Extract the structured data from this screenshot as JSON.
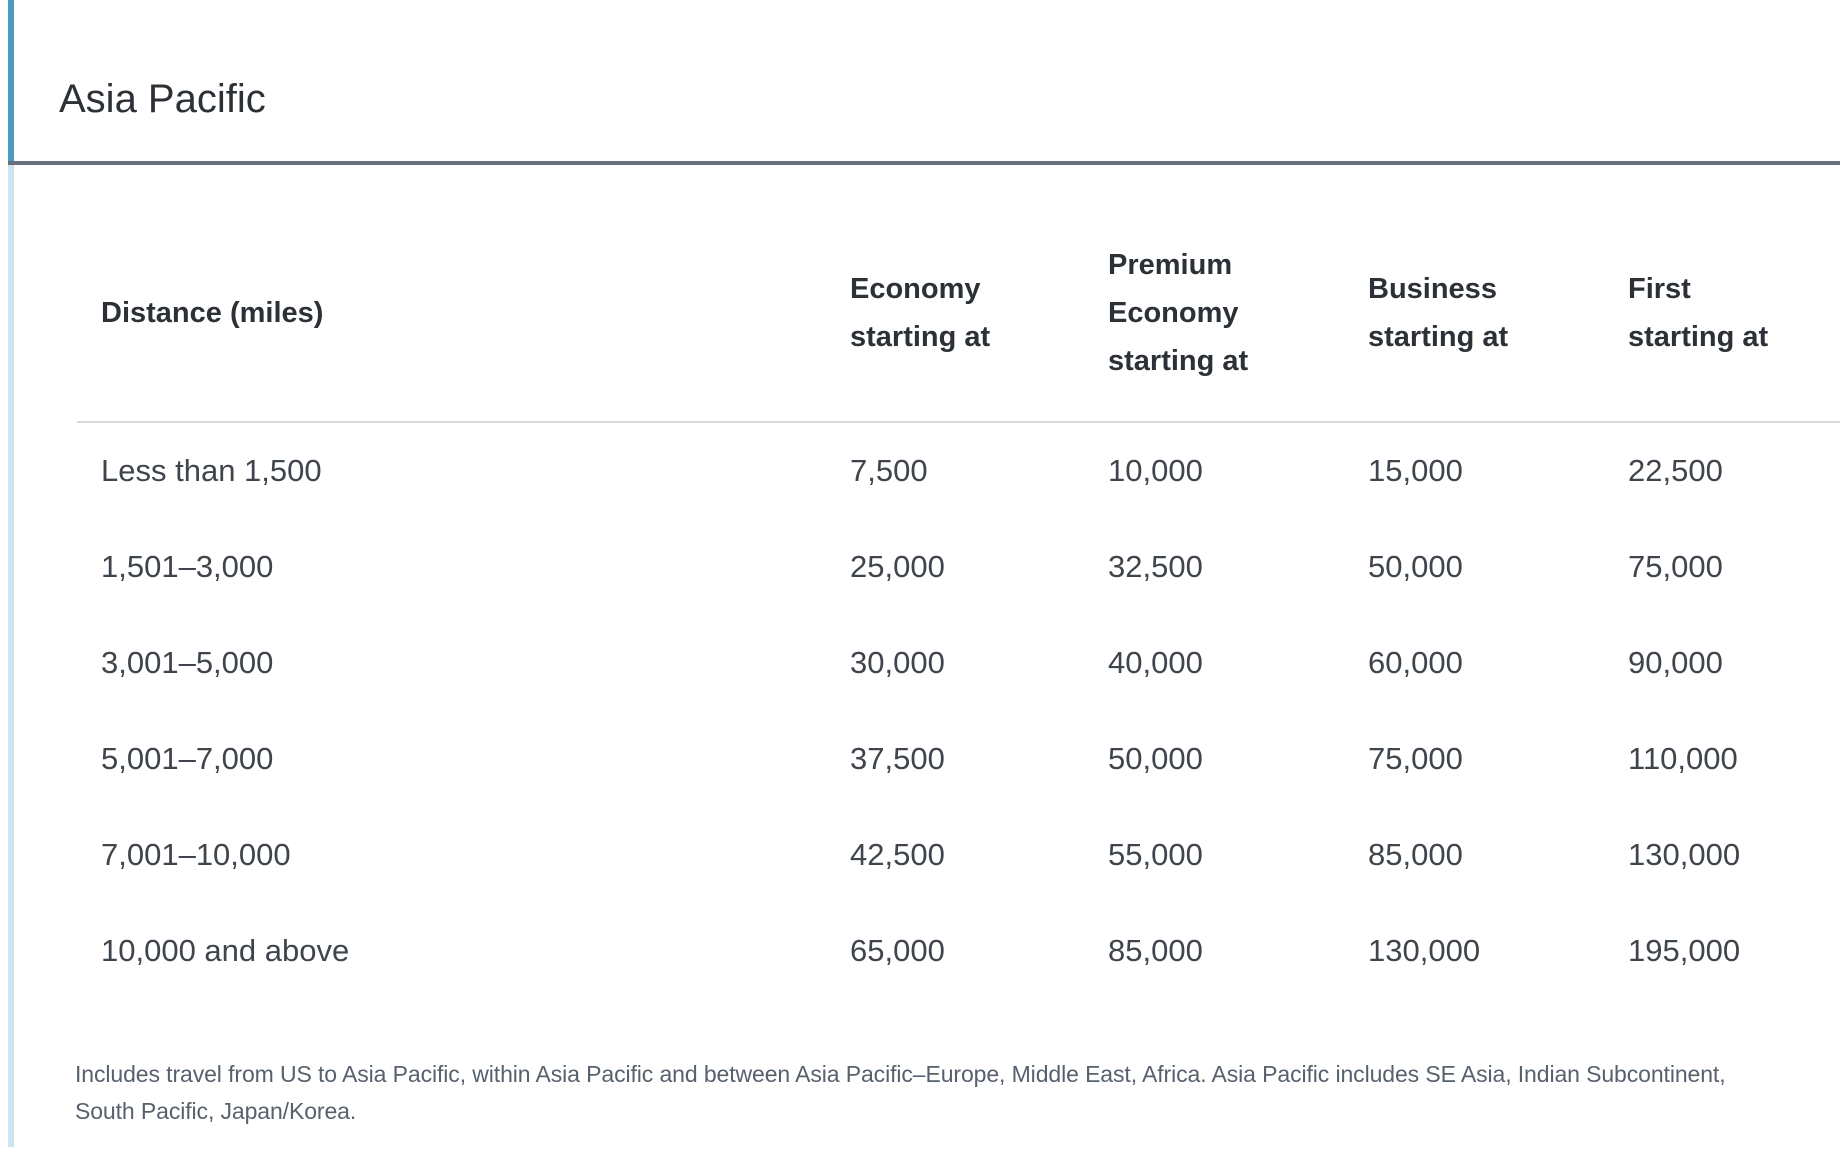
{
  "section": {
    "title": "Asia Pacific",
    "footnote": {
      "line1": "Includes travel from US to Asia Pacific, within Asia Pacific and between Asia Pacific–Europe, Middle East, Africa. Asia Pacific includes SE Asia, Indian Subcontinent,",
      "line2": "South Pacific, Japan/Korea."
    }
  },
  "colors": {
    "accent_blue_top": "#4a9ac1",
    "accent_blue_light": "#cde3ed",
    "dark_rule": "#67707b",
    "header_separator": "#d9dadb",
    "heading_text": "#2c3137",
    "body_text": "#3f454c",
    "footnote_text": "#57616e",
    "background": "#ffffff"
  },
  "table": {
    "columns": [
      {
        "lines": [
          "Distance (miles)"
        ]
      },
      {
        "lines": [
          "Economy",
          "starting at"
        ]
      },
      {
        "lines": [
          "Premium",
          "Economy",
          "starting at"
        ]
      },
      {
        "lines": [
          "Business",
          "starting at"
        ]
      },
      {
        "lines": [
          "First",
          "starting at"
        ]
      }
    ],
    "rows": [
      {
        "label": "Less than 1,500",
        "values": [
          "7,500",
          "10,000",
          "15,000",
          "22,500"
        ]
      },
      {
        "label": "1,501–3,000",
        "values": [
          "25,000",
          "32,500",
          "50,000",
          "75,000"
        ]
      },
      {
        "label": "3,001–5,000",
        "values": [
          "30,000",
          "40,000",
          "60,000",
          "90,000"
        ]
      },
      {
        "label": "5,001–7,000",
        "values": [
          "37,500",
          "50,000",
          "75,000",
          "110,000"
        ]
      },
      {
        "label": "7,001–10,000",
        "values": [
          "42,500",
          "55,000",
          "85,000",
          "130,000"
        ]
      },
      {
        "label": "10,000 and above",
        "values": [
          "65,000",
          "85,000",
          "130,000",
          "195,000"
        ]
      }
    ]
  },
  "chart_data": {
    "type": "table",
    "title": "Asia Pacific",
    "categories": [
      "Less than 1,500",
      "1,501–3,000",
      "3,001–5,000",
      "5,001–7,000",
      "7,001–10,000",
      "10,000 and above"
    ],
    "series": [
      {
        "name": "Economy starting at",
        "values": [
          7500,
          25000,
          30000,
          37500,
          42500,
          65000
        ]
      },
      {
        "name": "Premium Economy starting at",
        "values": [
          10000,
          32500,
          40000,
          50000,
          55000,
          85000
        ]
      },
      {
        "name": "Business starting at",
        "values": [
          15000,
          50000,
          60000,
          75000,
          85000,
          130000
        ]
      },
      {
        "name": "First starting at",
        "values": [
          22500,
          75000,
          90000,
          110000,
          130000,
          195000
        ]
      }
    ]
  }
}
